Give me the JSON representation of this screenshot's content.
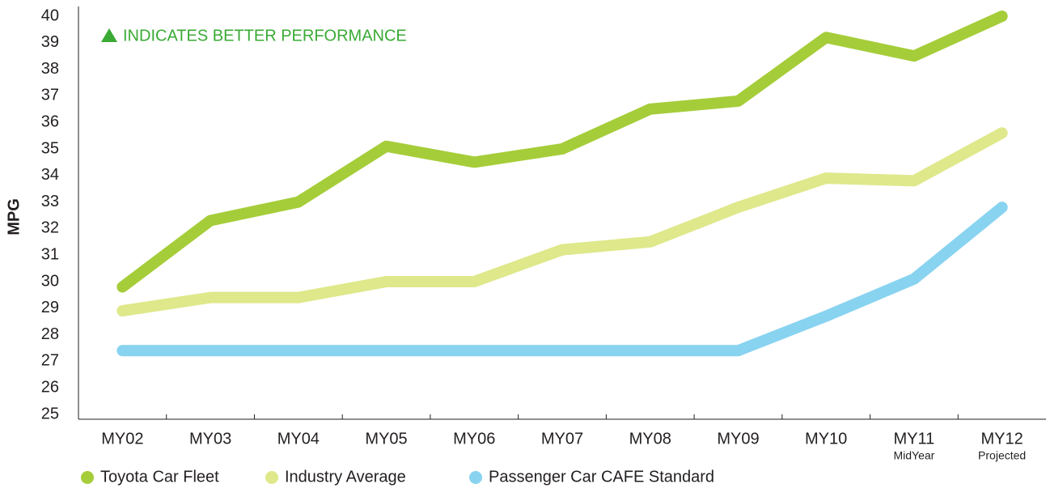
{
  "chart_data": {
    "type": "line",
    "y_label": "MPG",
    "annotation": "INDICATES BETTER PERFORMANCE",
    "annotation_color": "#3aaa35",
    "categories": [
      "MY02",
      "MY03",
      "MY04",
      "MY05",
      "MY06",
      "MY07",
      "MY08",
      "MY09",
      "MY10",
      "MY11",
      "MY12"
    ],
    "category_sublabels": [
      null,
      null,
      null,
      null,
      null,
      null,
      null,
      null,
      null,
      "MidYear",
      "Projected"
    ],
    "series": [
      {
        "name": "Toyota Car Fleet",
        "color": "#a5cd39",
        "values": [
          29.8,
          32.3,
          33.0,
          35.1,
          34.5,
          35.0,
          36.5,
          36.8,
          39.2,
          38.5,
          40.0
        ]
      },
      {
        "name": "Industry Average",
        "color": "#dfe88a",
        "values": [
          28.9,
          29.4,
          29.4,
          30.0,
          30.0,
          31.2,
          31.5,
          32.8,
          33.9,
          33.8,
          35.6
        ]
      },
      {
        "name": "Passenger Car CAFE Standard",
        "color": "#88d3f0",
        "values": [
          27.4,
          27.4,
          27.4,
          27.4,
          27.4,
          27.4,
          27.4,
          27.4,
          28.7,
          30.1,
          32.8
        ]
      }
    ],
    "ylim": [
      25,
      40
    ],
    "yticks": [
      25,
      26,
      27,
      28,
      29,
      30,
      31,
      32,
      33,
      34,
      35,
      36,
      37,
      38,
      39,
      40
    ],
    "grid": false,
    "legend": "bottom"
  }
}
